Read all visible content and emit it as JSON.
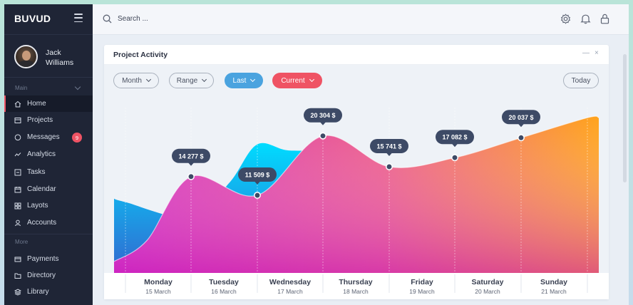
{
  "app": {
    "brand": "BUVUD"
  },
  "user": {
    "name": "Jack Williams"
  },
  "sidebar": {
    "sections": [
      {
        "label": "Main",
        "items": [
          {
            "label": "Home",
            "icon": "home-icon",
            "active": true
          },
          {
            "label": "Projects",
            "icon": "projects-icon"
          },
          {
            "label": "Messages",
            "icon": "messages-icon",
            "badge": "9"
          },
          {
            "label": "Analytics",
            "icon": "analytics-icon"
          },
          {
            "label": "Tasks",
            "icon": "tasks-icon"
          },
          {
            "label": "Calendar",
            "icon": "calendar-icon"
          },
          {
            "label": "Layots",
            "icon": "layouts-icon"
          },
          {
            "label": "Accounts",
            "icon": "accounts-icon"
          }
        ]
      },
      {
        "label": "More",
        "items": [
          {
            "label": "Payments",
            "icon": "payments-icon"
          },
          {
            "label": "Directory",
            "icon": "directory-icon"
          },
          {
            "label": "Library",
            "icon": "library-icon"
          }
        ]
      }
    ]
  },
  "topbar": {
    "search_placeholder": "Search ...",
    "icons": [
      "settings-icon",
      "notifications-icon",
      "lock-icon"
    ]
  },
  "card": {
    "title": "Project Activity",
    "minimize": "—",
    "close": "×",
    "filters": [
      {
        "label": "Month",
        "style": "outline"
      },
      {
        "label": "Range",
        "style": "outline"
      },
      {
        "label": "Last",
        "style": "blue"
      },
      {
        "label": "Current",
        "style": "red"
      }
    ],
    "today_label": "Today"
  },
  "colors": {
    "accent_red": "#ef5364",
    "accent_blue": "#4aa3df",
    "sidebar_bg": "#1f2536",
    "area_blue_top": "#00d9ff",
    "area_blue_bottom": "#2f64c9",
    "area_warm_left": "#d62ebd",
    "area_warm_right": "#ffa41f",
    "tooltip_bg": "#3d4a66"
  },
  "chart_data": {
    "type": "area",
    "categories": [
      "Monday",
      "Tuesday",
      "Wednesday",
      "Thursday",
      "Friday",
      "Saturday",
      "Sunday"
    ],
    "dates": [
      "15 March",
      "16 March",
      "17 March",
      "18 March",
      "19 March",
      "20 March",
      "21 March"
    ],
    "series": [
      {
        "values": [
          10500,
          8000,
          15800,
          18500,
          12600,
          15400,
          19000
        ]
      },
      {
        "values": [
          14277,
          11509,
          20304,
          15741,
          17082,
          20037,
          23000
        ]
      }
    ],
    "labels": [
      "14 277 $",
      "11 509 $",
      "20 304 $",
      "15 741 $",
      "17 082 $",
      "20 037 $"
    ],
    "ylim": [
      0,
      24500
    ],
    "grid": false
  }
}
